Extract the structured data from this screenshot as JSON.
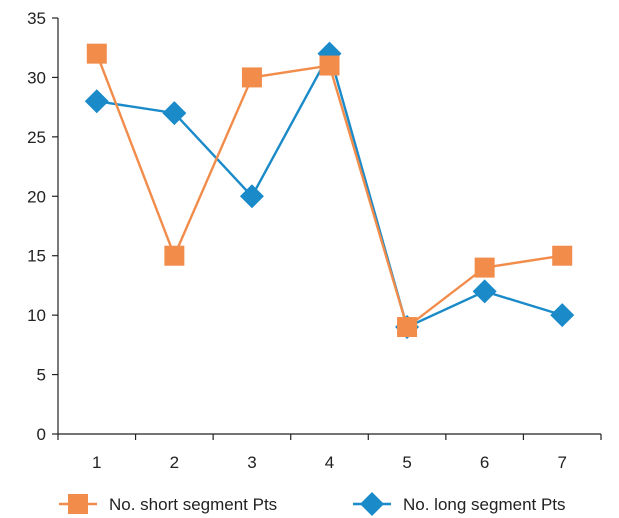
{
  "chart_data": {
    "type": "line",
    "categories": [
      "1",
      "2",
      "3",
      "4",
      "5",
      "6",
      "7"
    ],
    "ylim": [
      0,
      35
    ],
    "yticks": [
      0,
      5,
      10,
      15,
      20,
      25,
      30,
      35
    ],
    "grid": false,
    "legend_position": "bottom",
    "series": [
      {
        "name": "No. short segment Pts",
        "color": "#f28c4b",
        "marker": "square",
        "values": [
          32,
          15,
          30,
          31,
          9,
          14,
          15
        ]
      },
      {
        "name": "No. long segment Pts",
        "color": "#1a8ac9",
        "marker": "diamond",
        "values": [
          28,
          27,
          20,
          32,
          9,
          12,
          10
        ]
      }
    ]
  }
}
